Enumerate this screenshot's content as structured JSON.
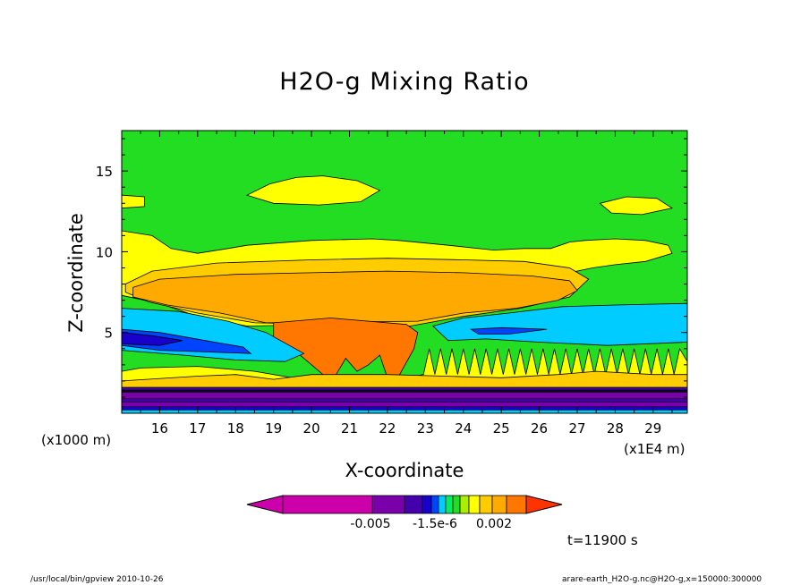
{
  "chart_data": {
    "type": "heatmap",
    "title": "H2O-g Mixing Ratio",
    "xlabel": "X-coordinate",
    "ylabel": "Z-coordinate",
    "x_unit": "(x1E4 m)",
    "y_unit": "(x1000 m)",
    "x_ticks": [
      "16",
      "17",
      "18",
      "19",
      "20",
      "21",
      "22",
      "23",
      "24",
      "25",
      "26",
      "27",
      "28",
      "29"
    ],
    "y_ticks": [
      "5",
      "10",
      "15"
    ],
    "xlim": [
      15.0,
      29.9
    ],
    "ylim": [
      0,
      17.5
    ],
    "grid": false,
    "colorbar": {
      "tick_labels": [
        "-0.005",
        "-1.5e-6",
        "0.002"
      ],
      "colors": [
        "#cc00aa",
        "#7a00aa",
        "#4400aa",
        "#1a00cc",
        "#0044ff",
        "#00ccff",
        "#00ee66",
        "#22dd22",
        "#aaee00",
        "#ffff00",
        "#ffcc00",
        "#ffaa00",
        "#ff7700",
        "#ff3300"
      ]
    },
    "annotation_time": "t=11900 s",
    "footer_left": "/usr/local/bin/gpview  2010-10-26",
    "footer_right": "arare-earth_H2O-g.nc@H2O-g,x=150000:300000",
    "field_colors": {
      "background": "#22dd22",
      "upper_yellow": "#ffff00",
      "anvil_gold": "#ffcc00",
      "anvil_orange": "#ffaa00",
      "core": "#ff7700",
      "cyan": "#00ccff",
      "blue": "#0044ff",
      "navy": "#1a00cc",
      "indigo": "#4400aa",
      "purple": "#7a00aa",
      "magenta": "#cc00aa"
    }
  }
}
